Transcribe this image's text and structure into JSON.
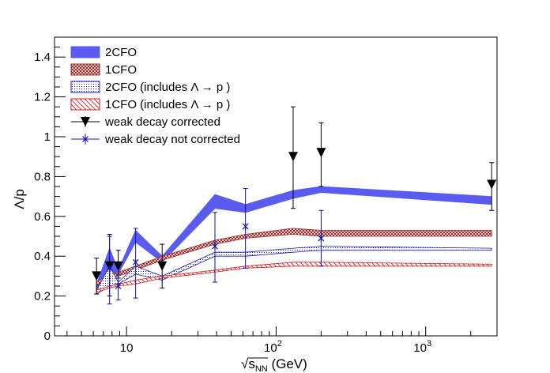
{
  "chart_data": {
    "type": "band_and_errorbar",
    "xlabel": "√s_NN (GeV)",
    "xlabel_parts": {
      "root": "√",
      "main": "s",
      "sub": "NN",
      "unit": " (GeV)"
    },
    "ylabel": "Λ/p",
    "x_scale": "log",
    "xlim": [
      3.3,
      3000
    ],
    "ylim": [
      0,
      1.5
    ],
    "x_ticks": [
      {
        "value": 10,
        "base": "10",
        "exp": ""
      },
      {
        "value": 100,
        "base": "10",
        "exp": "2"
      },
      {
        "value": 1000,
        "base": "10",
        "exp": "3"
      }
    ],
    "y_ticks": [
      0,
      0.2,
      0.4,
      0.6,
      0.8,
      1,
      1.2,
      1.4
    ],
    "y_tick_labels": [
      "0",
      "0.2",
      "0.4",
      "0.6",
      "0.8",
      "1",
      "1.2",
      "1.4"
    ],
    "legend_position": "top-left",
    "bands": [
      {
        "name": "2CFO",
        "color": "#5a5cf0",
        "style": "solid",
        "x": [
          6.3,
          7.7,
          8.8,
          11.5,
          17.3,
          39,
          62.4,
          130,
          200,
          2760
        ],
        "lo": [
          0.22,
          0.29,
          0.31,
          0.47,
          0.37,
          0.64,
          0.62,
          0.69,
          0.72,
          0.66
        ],
        "hi": [
          0.26,
          0.44,
          0.33,
          0.53,
          0.4,
          0.71,
          0.66,
          0.73,
          0.75,
          0.7
        ]
      },
      {
        "name": "1CFO",
        "color": "#a52a2a",
        "style": "crosshatch",
        "x": [
          6.3,
          7.7,
          8.8,
          11.5,
          17.3,
          39,
          62.4,
          130,
          200,
          2760
        ],
        "lo": [
          0.25,
          0.29,
          0.3,
          0.33,
          0.38,
          0.46,
          0.49,
          0.51,
          0.5,
          0.5
        ],
        "hi": [
          0.27,
          0.31,
          0.32,
          0.35,
          0.4,
          0.48,
          0.51,
          0.54,
          0.53,
          0.53
        ]
      },
      {
        "name": "2CFO (includes Λ → p )",
        "color": "#1a1ab0",
        "style": "dots",
        "x": [
          6.3,
          7.7,
          8.8,
          11.5,
          17.3,
          39,
          62.4,
          130,
          200,
          2760
        ],
        "lo": [
          0.21,
          0.25,
          0.26,
          0.31,
          0.28,
          0.4,
          0.4,
          0.42,
          0.43,
          0.43
        ],
        "hi": [
          0.23,
          0.35,
          0.27,
          0.35,
          0.3,
          0.42,
          0.42,
          0.44,
          0.45,
          0.44
        ]
      },
      {
        "name": "1CFO (includes Λ → p )",
        "color": "#d02020",
        "style": "hatch",
        "x": [
          6.3,
          7.7,
          8.8,
          11.5,
          17.3,
          39,
          62.4,
          130,
          200,
          2760
        ],
        "lo": [
          0.22,
          0.24,
          0.25,
          0.26,
          0.29,
          0.32,
          0.34,
          0.35,
          0.35,
          0.35
        ],
        "hi": [
          0.23,
          0.25,
          0.26,
          0.28,
          0.3,
          0.33,
          0.35,
          0.37,
          0.37,
          0.36
        ]
      }
    ],
    "series": [
      {
        "name": "weak decay corrected",
        "marker": "triangle-down",
        "color": "#000000",
        "points": [
          {
            "x": 6.3,
            "y": 0.3,
            "lo": 0.21,
            "hi": 0.39
          },
          {
            "x": 7.7,
            "y": 0.35,
            "lo": 0.2,
            "hi": 0.51
          },
          {
            "x": 8.8,
            "y": 0.35,
            "lo": 0.29,
            "hi": 0.43
          },
          {
            "x": 17.3,
            "y": 0.35,
            "lo": 0.24,
            "hi": 0.46
          },
          {
            "x": 130,
            "y": 0.9,
            "lo": 0.64,
            "hi": 1.15
          },
          {
            "x": 200,
            "y": 0.92,
            "lo": 0.75,
            "hi": 1.07
          },
          {
            "x": 2760,
            "y": 0.76,
            "lo": 0.63,
            "hi": 0.87
          }
        ]
      },
      {
        "name": "weak decay not corrected",
        "marker": "star",
        "color": "#1010b0",
        "points": [
          {
            "x": 7.7,
            "y": 0.34,
            "lo": 0.16,
            "hi": 0.5
          },
          {
            "x": 8.8,
            "y": 0.25,
            "lo": 0.18,
            "hi": 0.31
          },
          {
            "x": 11.5,
            "y": 0.37,
            "lo": 0.19,
            "hi": 0.54
          },
          {
            "x": 39,
            "y": 0.45,
            "lo": 0.27,
            "hi": 0.62
          },
          {
            "x": 62.4,
            "y": 0.55,
            "lo": 0.34,
            "hi": 0.74
          },
          {
            "x": 200,
            "y": 0.49,
            "lo": 0.35,
            "hi": 0.63
          }
        ]
      }
    ]
  }
}
